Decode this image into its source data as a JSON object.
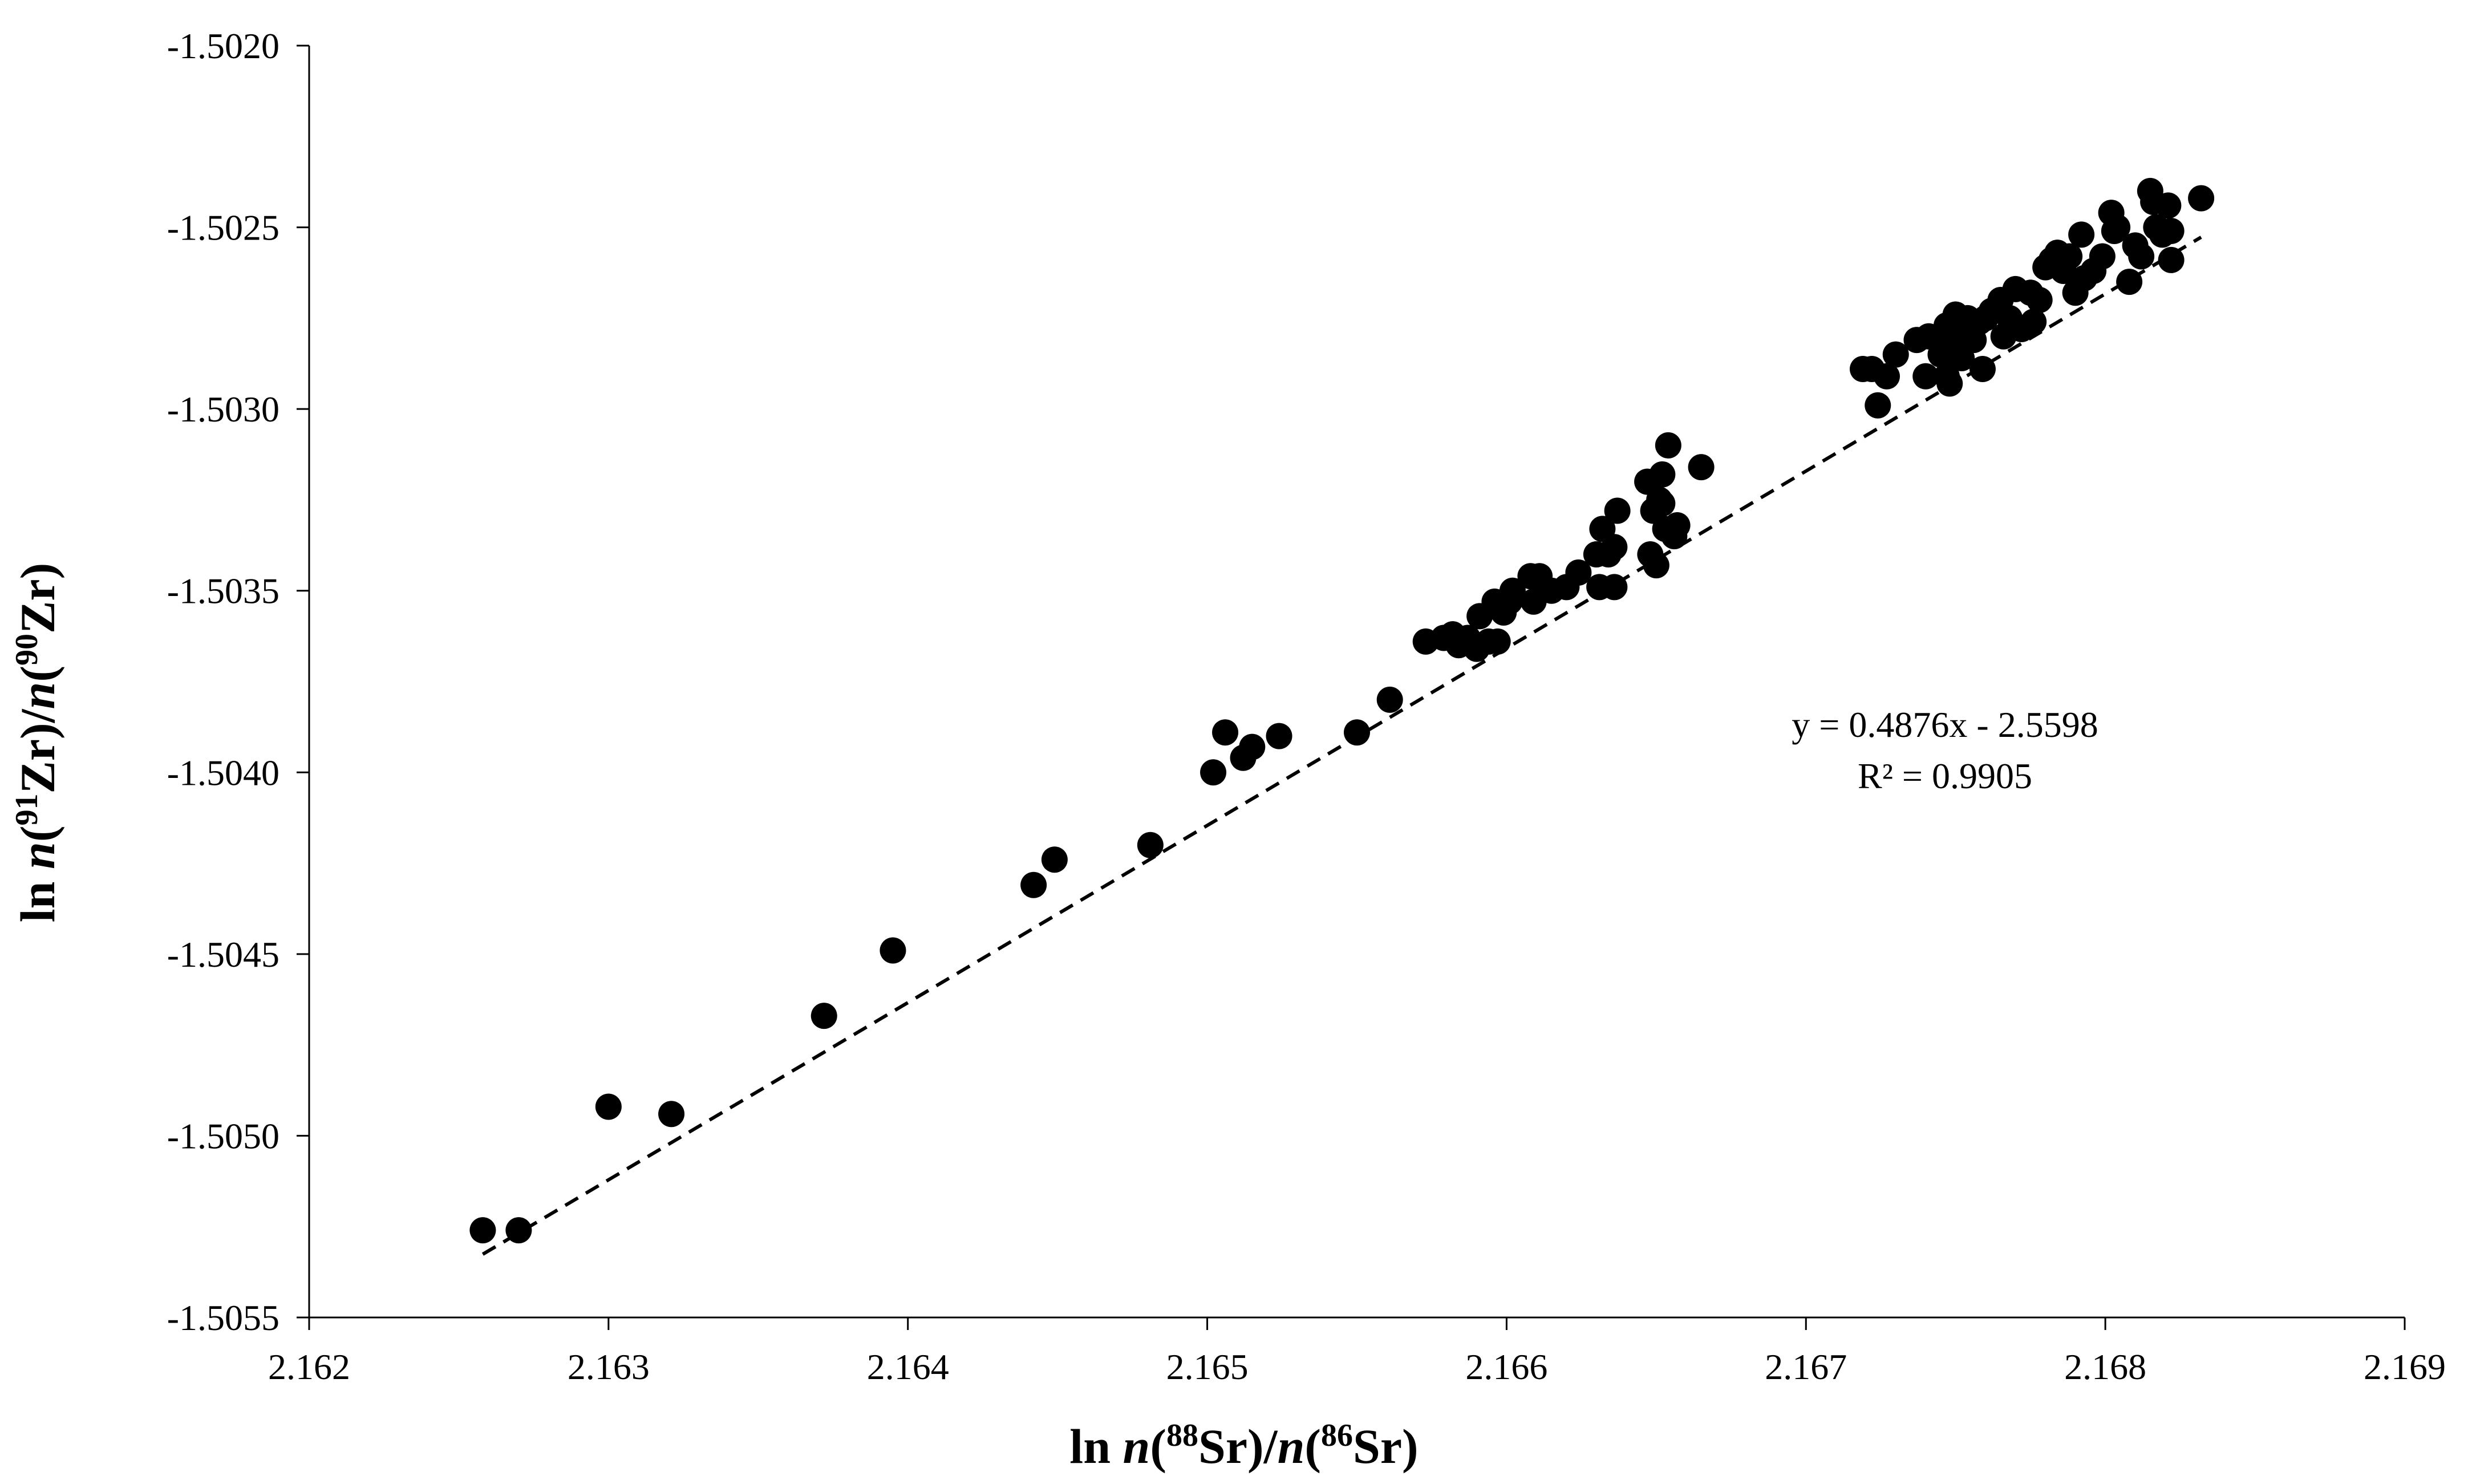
{
  "chart_data": {
    "type": "scatter",
    "title": "",
    "xlabel": {
      "pre": "ln ",
      "n1": "n",
      "p1": "(",
      "sup1": "88",
      "el1": "Sr)/",
      "n2": "n",
      "p2": "(",
      "sup2": "86",
      "el2": "Sr)"
    },
    "ylabel": {
      "pre": "ln ",
      "n1": "n",
      "p1": "(",
      "sup1": "91",
      "el1": "Zr)/",
      "n2": "n",
      "p2": "(",
      "sup2": "90",
      "el2": "Zr)"
    },
    "xlim": [
      2.162,
      2.169
    ],
    "ylim": [
      -1.5055,
      -1.502
    ],
    "xticks": [
      "2.162",
      "2.163",
      "2.164",
      "2.165",
      "2.166",
      "2.167",
      "2.168",
      "2.169"
    ],
    "yticks": [
      "-1.5020",
      "-1.5025",
      "-1.5030",
      "-1.5035",
      "-1.5040",
      "-1.5045",
      "-1.5050",
      "-1.5055"
    ],
    "grid": false,
    "trendline": {
      "slope": 0.4876,
      "intercept": -2.5598,
      "x_range": [
        2.16258,
        2.16832
      ],
      "style": "dashed"
    },
    "annotations": [
      "y = 0.4876x - 2.5598",
      "R² = 0.9905"
    ],
    "series": [
      {
        "marker_color": "#000000",
        "points": [
          [
            2.16258,
            -1.50526
          ],
          [
            2.1627,
            -1.50526
          ],
          [
            2.163,
            -1.50492
          ],
          [
            2.16321,
            -1.50494
          ],
          [
            2.16372,
            -1.50467
          ],
          [
            2.16395,
            -1.50449
          ],
          [
            2.16442,
            -1.50431
          ],
          [
            2.16449,
            -1.50424
          ],
          [
            2.16481,
            -1.5042
          ],
          [
            2.16502,
            -1.504
          ],
          [
            2.16506,
            -1.50389
          ],
          [
            2.16512,
            -1.50396
          ],
          [
            2.16515,
            -1.50393
          ],
          [
            2.16524,
            -1.5039
          ],
          [
            2.1655,
            -1.50389
          ],
          [
            2.16561,
            -1.5038
          ],
          [
            2.16573,
            -1.50364
          ],
          [
            2.16579,
            -1.50363
          ],
          [
            2.16582,
            -1.50362
          ],
          [
            2.16584,
            -1.50365
          ],
          [
            2.16587,
            -1.50363
          ],
          [
            2.1659,
            -1.50366
          ],
          [
            2.16591,
            -1.50357
          ],
          [
            2.16594,
            -1.50364
          ],
          [
            2.16596,
            -1.50353
          ],
          [
            2.16597,
            -1.50364
          ],
          [
            2.16599,
            -1.50356
          ],
          [
            2.16601,
            -1.50353
          ],
          [
            2.16602,
            -1.5035
          ],
          [
            2.16608,
            -1.50346
          ],
          [
            2.16609,
            -1.50353
          ],
          [
            2.16611,
            -1.50346
          ],
          [
            2.16612,
            -1.50349
          ],
          [
            2.16615,
            -1.5035
          ],
          [
            2.1662,
            -1.50349
          ],
          [
            2.16624,
            -1.50345
          ],
          [
            2.1663,
            -1.5034
          ],
          [
            2.16631,
            -1.50349
          ],
          [
            2.16632,
            -1.50333
          ],
          [
            2.16634,
            -1.5034
          ],
          [
            2.16636,
            -1.50349
          ],
          [
            2.16636,
            -1.50338
          ],
          [
            2.16637,
            -1.50328
          ],
          [
            2.16647,
            -1.5032
          ],
          [
            2.16648,
            -1.5034
          ],
          [
            2.16649,
            -1.50328
          ],
          [
            2.1665,
            -1.50343
          ],
          [
            2.16651,
            -1.50325
          ],
          [
            2.16652,
            -1.50326
          ],
          [
            2.16652,
            -1.50318
          ],
          [
            2.16653,
            -1.50333
          ],
          [
            2.16654,
            -1.5031
          ],
          [
            2.16656,
            -1.50335
          ],
          [
            2.16657,
            -1.50332
          ],
          [
            2.16665,
            -1.50316
          ],
          [
            2.16719,
            -1.50289
          ],
          [
            2.16722,
            -1.50289
          ],
          [
            2.16724,
            -1.50299
          ],
          [
            2.16727,
            -1.50291
          ],
          [
            2.1673,
            -1.50285
          ],
          [
            2.16737,
            -1.50281
          ],
          [
            2.1674,
            -1.50291
          ],
          [
            2.16741,
            -1.5028
          ],
          [
            2.16745,
            -1.50285
          ],
          [
            2.16747,
            -1.50291
          ],
          [
            2.16747,
            -1.50277
          ],
          [
            2.16748,
            -1.50293
          ],
          [
            2.16749,
            -1.5028
          ],
          [
            2.1675,
            -1.50274
          ],
          [
            2.16752,
            -1.50286
          ],
          [
            2.16754,
            -1.50275
          ],
          [
            2.16756,
            -1.50281
          ],
          [
            2.16758,
            -1.50276
          ],
          [
            2.16759,
            -1.50289
          ],
          [
            2.1676,
            -1.50275
          ],
          [
            2.16762,
            -1.50273
          ],
          [
            2.16765,
            -1.5027
          ],
          [
            2.16766,
            -1.5028
          ],
          [
            2.16768,
            -1.50275
          ],
          [
            2.1677,
            -1.50267
          ],
          [
            2.16772,
            -1.50278
          ],
          [
            2.16775,
            -1.50268
          ],
          [
            2.16776,
            -1.50276
          ],
          [
            2.16778,
            -1.5027
          ],
          [
            2.1678,
            -1.50261
          ],
          [
            2.16782,
            -1.50259
          ],
          [
            2.16784,
            -1.50257
          ],
          [
            2.16786,
            -1.50262
          ],
          [
            2.16788,
            -1.50258
          ],
          [
            2.1679,
            -1.50268
          ],
          [
            2.16791,
            -1.50265
          ],
          [
            2.16792,
            -1.50252
          ],
          [
            2.16793,
            -1.50264
          ],
          [
            2.16796,
            -1.50262
          ],
          [
            2.16799,
            -1.50258
          ],
          [
            2.16802,
            -1.50246
          ],
          [
            2.16803,
            -1.50251
          ],
          [
            2.16804,
            -1.5025
          ],
          [
            2.16808,
            -1.50265
          ],
          [
            2.1681,
            -1.50255
          ],
          [
            2.16812,
            -1.50258
          ],
          [
            2.16815,
            -1.5024
          ],
          [
            2.16816,
            -1.50243
          ],
          [
            2.16817,
            -1.5025
          ],
          [
            2.16819,
            -1.50252
          ],
          [
            2.16821,
            -1.50244
          ],
          [
            2.16822,
            -1.50259
          ],
          [
            2.16822,
            -1.50251
          ],
          [
            2.16832,
            -1.50242
          ]
        ]
      }
    ]
  }
}
